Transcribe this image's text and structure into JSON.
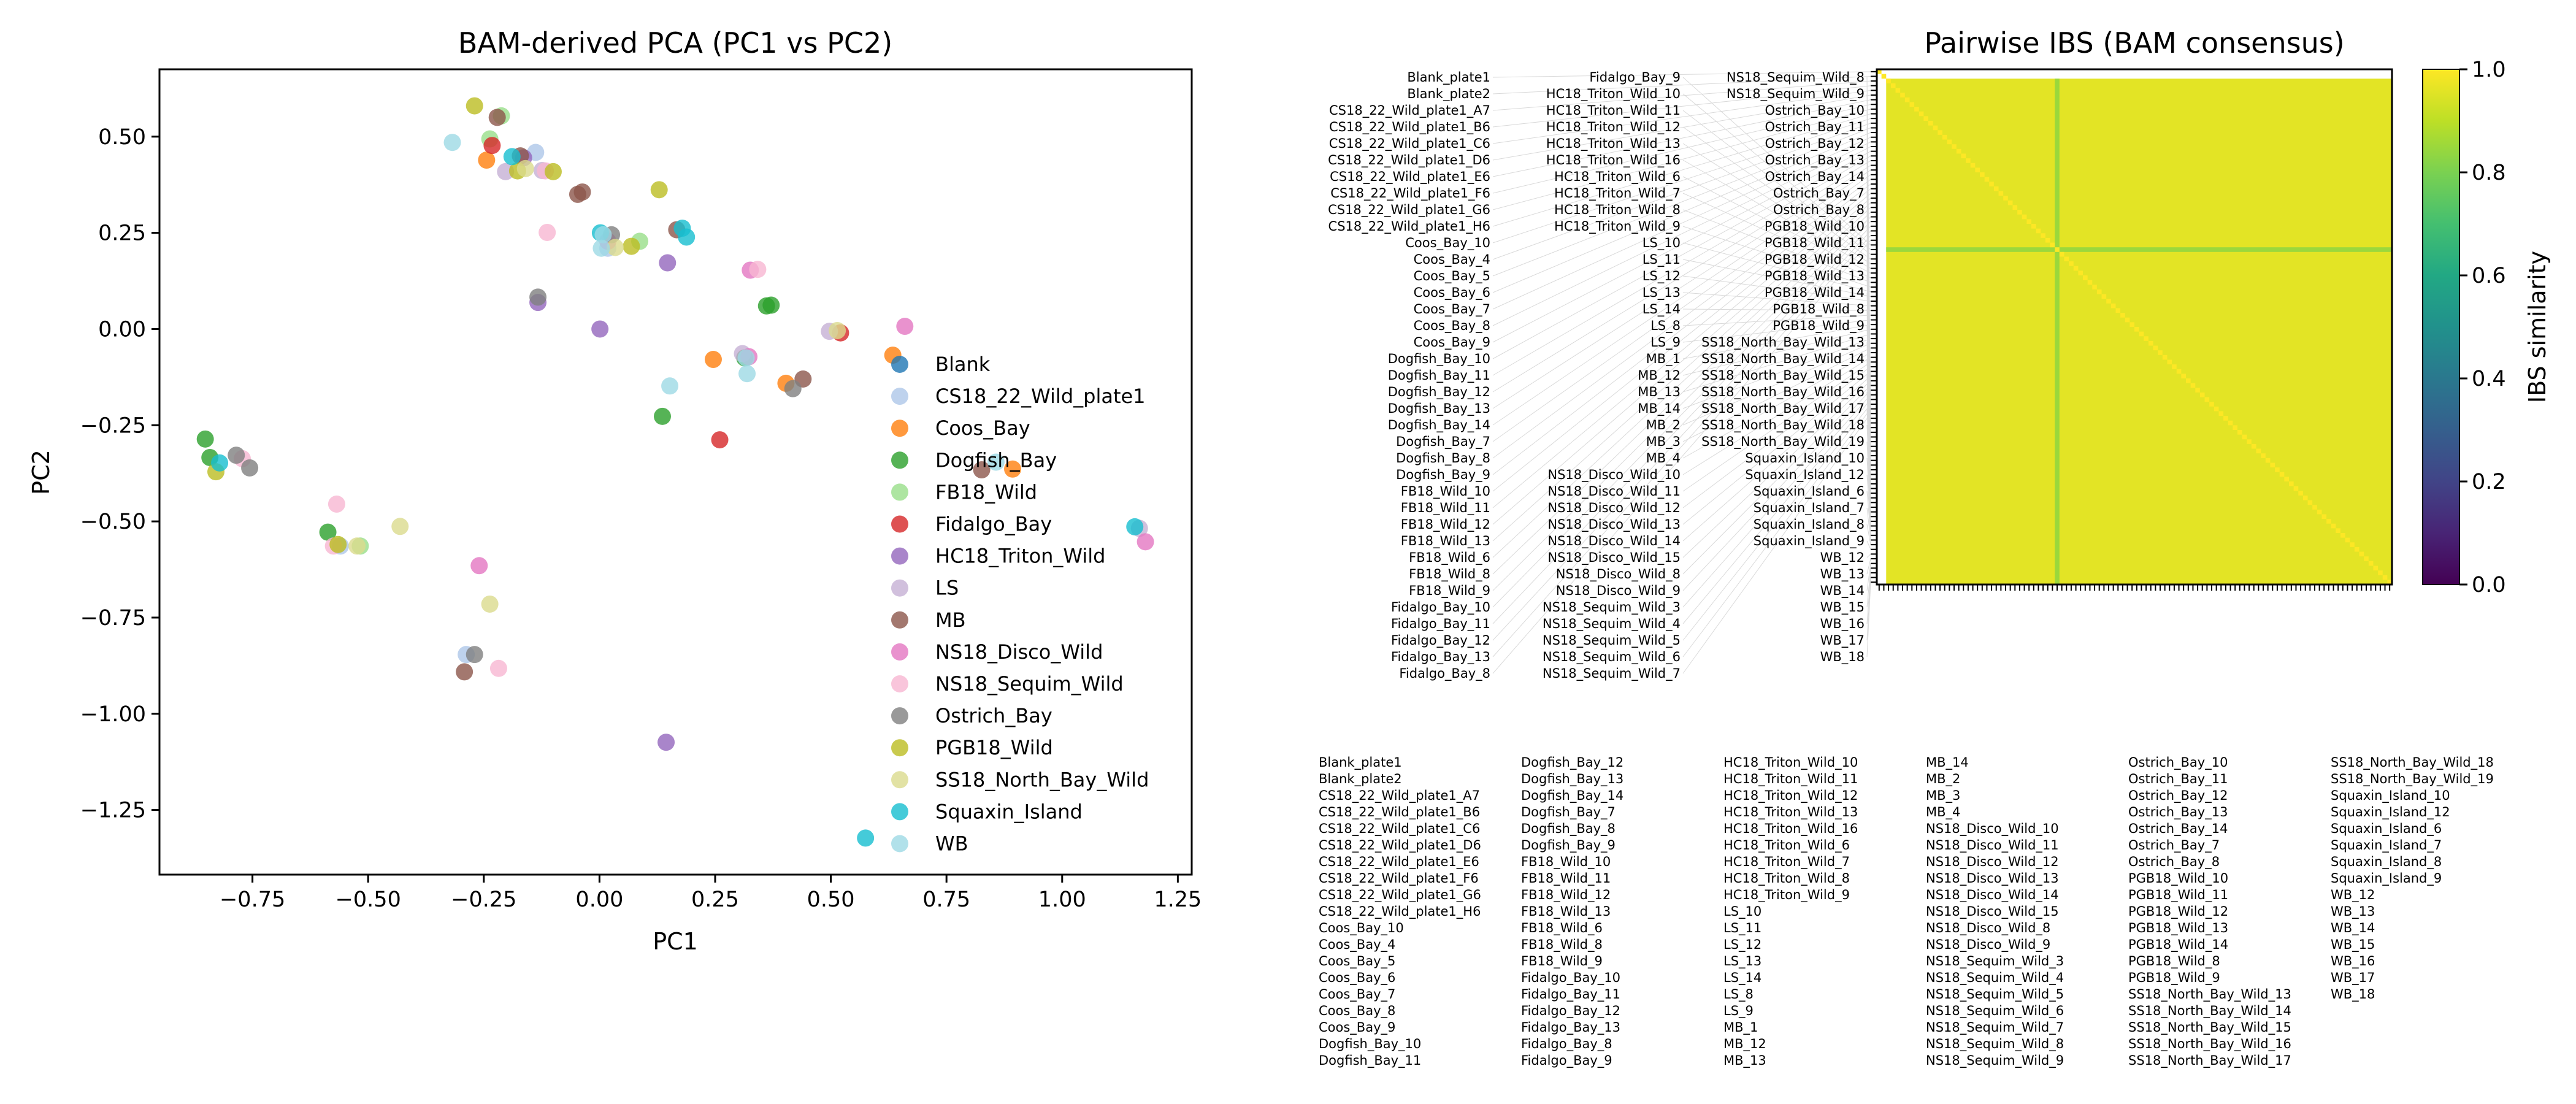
{
  "chart_data": [
    {
      "type": "scatter",
      "title": "BAM-derived PCA (PC1 vs PC2)",
      "xlabel": "PC1",
      "ylabel": "PC2",
      "xlim": [
        -0.951,
        1.28
      ],
      "ylim": [
        -1.418,
        0.675
      ],
      "xticks": [
        -0.75,
        -0.5,
        -0.25,
        0.0,
        0.25,
        0.5,
        0.75,
        1.0,
        1.25
      ],
      "xtick_labels": [
        "−0.75",
        "−0.50",
        "−0.25",
        "0.00",
        "0.25",
        "0.50",
        "0.75",
        "1.00",
        "1.25"
      ],
      "yticks": [
        0.5,
        0.25,
        0.0,
        -0.25,
        -0.5,
        -0.75,
        -1.0,
        -1.25
      ],
      "ytick_labels": [
        "0.50",
        "0.25",
        "0.00",
        "−0.25",
        "−0.50",
        "−0.75",
        "−1.00",
        "−1.25"
      ],
      "grid": false,
      "legend_position": "lower-right",
      "series": [
        {
          "name": "Blank",
          "color": "#1f77b4",
          "points": []
        },
        {
          "name": "CS18_22_Wild_plate1",
          "color": "#aec7e8",
          "points": [
            [
              -0.138,
              0.459
            ],
            [
              0.018,
              0.21
            ],
            [
              -0.56,
              -0.564
            ],
            [
              -0.288,
              -0.846
            ]
          ]
        },
        {
          "name": "Coos_Bay",
          "color": "#ff7f0e",
          "points": [
            [
              -0.244,
              0.439
            ],
            [
              0.634,
              -0.068
            ],
            [
              0.246,
              -0.079
            ],
            [
              0.403,
              -0.141
            ],
            [
              0.893,
              -0.364
            ]
          ]
        },
        {
          "name": "Dogfish_Bay",
          "color": "#2ca02c",
          "points": [
            [
              0.361,
              0.06
            ],
            [
              0.371,
              0.062
            ],
            [
              0.314,
              -0.075
            ],
            [
              0.136,
              -0.227
            ],
            [
              -0.852,
              -0.286
            ],
            [
              -0.842,
              -0.334
            ],
            [
              -0.587,
              -0.528
            ]
          ]
        },
        {
          "name": "FB18_Wild",
          "color": "#98df8a",
          "points": [
            [
              -0.212,
              0.554
            ],
            [
              -0.237,
              0.494
            ],
            [
              0.087,
              0.228
            ],
            [
              -0.517,
              -0.564
            ]
          ]
        },
        {
          "name": "Fidalgo_Bay",
          "color": "#d62728",
          "points": [
            [
              -0.232,
              0.477
            ],
            [
              0.521,
              -0.01
            ],
            [
              0.26,
              -0.288
            ]
          ]
        },
        {
          "name": "HC18_Triton_Wild",
          "color": "#9467bd",
          "points": [
            [
              -0.164,
              0.445
            ],
            [
              0.147,
              0.172
            ],
            [
              -0.133,
              0.069
            ],
            [
              0.001,
              0.0
            ],
            [
              0.144,
              -1.074
            ]
          ]
        },
        {
          "name": "LS",
          "color": "#c5b0d5",
          "points": [
            [
              -0.203,
              0.409
            ],
            [
              -0.124,
              0.412
            ],
            [
              0.497,
              -0.006
            ],
            [
              0.309,
              -0.064
            ],
            [
              1.167,
              -0.518
            ]
          ]
        },
        {
          "name": "MB",
          "color": "#8c564b",
          "points": [
            [
              -0.221,
              0.55
            ],
            [
              -0.171,
              0.45
            ],
            [
              -0.047,
              0.35
            ],
            [
              -0.037,
              0.356
            ],
            [
              0.167,
              0.258
            ],
            [
              0.44,
              -0.13
            ],
            [
              0.826,
              -0.366
            ],
            [
              -0.292,
              -0.891
            ]
          ]
        },
        {
          "name": "NS18_Disco_Wild",
          "color": "#e377c2",
          "points": [
            [
              0.018,
              0.228
            ],
            [
              0.326,
              0.153
            ],
            [
              0.66,
              0.007
            ],
            [
              0.323,
              -0.072
            ],
            [
              1.18,
              -0.553
            ],
            [
              -0.26,
              -0.615
            ]
          ]
        },
        {
          "name": "NS18_Sequim_Wild",
          "color": "#f7b6d2",
          "points": [
            [
              -0.117,
              0.411
            ],
            [
              -0.113,
              0.251
            ],
            [
              0.342,
              0.155
            ],
            [
              -0.772,
              -0.337
            ],
            [
              -0.568,
              -0.455
            ],
            [
              -0.575,
              -0.564
            ],
            [
              -0.218,
              -0.882
            ]
          ]
        },
        {
          "name": "Ostrich_Bay",
          "color": "#7f7f7f",
          "points": [
            [
              0.026,
              0.245
            ],
            [
              -0.133,
              0.083
            ],
            [
              0.418,
              -0.155
            ],
            [
              -0.785,
              -0.328
            ],
            [
              -0.756,
              -0.361
            ],
            [
              -0.27,
              -0.846
            ]
          ]
        },
        {
          "name": "PGB18_Wild",
          "color": "#bcbd22",
          "points": [
            [
              -0.27,
              0.58
            ],
            [
              -0.177,
              0.411
            ],
            [
              -0.1,
              0.409
            ],
            [
              0.129,
              0.362
            ],
            [
              0.069,
              0.215
            ],
            [
              -0.829,
              -0.371
            ],
            [
              -0.565,
              -0.56
            ]
          ]
        },
        {
          "name": "SS18_North_Bay_Wild",
          "color": "#dbdb8d",
          "points": [
            [
              -0.16,
              0.417
            ],
            [
              0.034,
              0.212
            ],
            [
              0.514,
              -0.004
            ],
            [
              -0.431,
              -0.513
            ],
            [
              -0.524,
              -0.564
            ],
            [
              -0.237,
              -0.715
            ]
          ]
        },
        {
          "name": "Squaxin_Island",
          "color": "#17becf",
          "points": [
            [
              -0.189,
              0.448
            ],
            [
              0.002,
              0.25
            ],
            [
              0.179,
              0.262
            ],
            [
              0.188,
              0.239
            ],
            [
              -0.821,
              -0.348
            ],
            [
              1.157,
              -0.514
            ],
            [
              0.575,
              -1.323
            ]
          ]
        },
        {
          "name": "WB",
          "color": "#9edae5",
          "points": [
            [
              -0.318,
              0.485
            ],
            [
              0.008,
              0.245
            ],
            [
              0.004,
              0.21
            ],
            [
              0.317,
              -0.075
            ],
            [
              0.319,
              -0.116
            ],
            [
              0.152,
              -0.148
            ],
            [
              0.857,
              -0.346
            ]
          ]
        }
      ]
    },
    {
      "type": "heatmap",
      "title": "Pairwise IBS (BAM consensus)",
      "colormap": "viridis",
      "colorbar": {
        "label": "IBS similarity",
        "range": [
          0,
          1
        ],
        "ticks": [
          0.0,
          0.2,
          0.4,
          0.6,
          0.8,
          1.0
        ],
        "tick_labels": [
          "0.0",
          "0.2",
          "0.4",
          "0.6",
          "0.8",
          "1.0"
        ]
      },
      "values": {
        "diagonal": 1.0,
        "typical_off_diagonal": 0.96,
        "outlier_sample": "HC18_Triton_Wild_10",
        "outlier_value": 0.85,
        "blank_off_diagonal": null
      },
      "labels": [
        "Blank_plate1",
        "Blank_plate2",
        "CS18_22_Wild_plate1_A7",
        "CS18_22_Wild_plate1_B6",
        "CS18_22_Wild_plate1_C6",
        "CS18_22_Wild_plate1_D6",
        "CS18_22_Wild_plate1_E6",
        "CS18_22_Wild_plate1_F6",
        "CS18_22_Wild_plate1_G6",
        "CS18_22_Wild_plate1_H6",
        "Coos_Bay_10",
        "Coos_Bay_4",
        "Coos_Bay_5",
        "Coos_Bay_6",
        "Coos_Bay_7",
        "Coos_Bay_8",
        "Coos_Bay_9",
        "Dogfish_Bay_10",
        "Dogfish_Bay_11",
        "Dogfish_Bay_12",
        "Dogfish_Bay_13",
        "Dogfish_Bay_14",
        "Dogfish_Bay_7",
        "Dogfish_Bay_8",
        "Dogfish_Bay_9",
        "FB18_Wild_10",
        "FB18_Wild_11",
        "FB18_Wild_12",
        "FB18_Wild_13",
        "FB18_Wild_6",
        "FB18_Wild_8",
        "FB18_Wild_9",
        "Fidalgo_Bay_10",
        "Fidalgo_Bay_11",
        "Fidalgo_Bay_12",
        "Fidalgo_Bay_13",
        "Fidalgo_Bay_8",
        "Fidalgo_Bay_9",
        "HC18_Triton_Wild_10",
        "HC18_Triton_Wild_11",
        "HC18_Triton_Wild_12",
        "HC18_Triton_Wild_13",
        "HC18_Triton_Wild_16",
        "HC18_Triton_Wild_6",
        "HC18_Triton_Wild_7",
        "HC18_Triton_Wild_8",
        "HC18_Triton_Wild_9",
        "LS_10",
        "LS_11",
        "LS_12",
        "LS_13",
        "LS_14",
        "LS_8",
        "LS_9",
        "MB_1",
        "MB_12",
        "MB_13",
        "MB_14",
        "MB_2",
        "MB_3",
        "MB_4",
        "NS18_Disco_Wild_10",
        "NS18_Disco_Wild_11",
        "NS18_Disco_Wild_12",
        "NS18_Disco_Wild_13",
        "NS18_Disco_Wild_14",
        "NS18_Disco_Wild_15",
        "NS18_Disco_Wild_8",
        "NS18_Disco_Wild_9",
        "NS18_Sequim_Wild_3",
        "NS18_Sequim_Wild_4",
        "NS18_Sequim_Wild_5",
        "NS18_Sequim_Wild_6",
        "NS18_Sequim_Wild_7",
        "NS18_Sequim_Wild_8",
        "NS18_Sequim_Wild_9",
        "Ostrich_Bay_10",
        "Ostrich_Bay_11",
        "Ostrich_Bay_12",
        "Ostrich_Bay_13",
        "Ostrich_Bay_14",
        "Ostrich_Bay_7",
        "Ostrich_Bay_8",
        "PGB18_Wild_10",
        "PGB18_Wild_11",
        "PGB18_Wild_12",
        "PGB18_Wild_13",
        "PGB18_Wild_14",
        "PGB18_Wild_8",
        "PGB18_Wild_9",
        "SS18_North_Bay_Wild_13",
        "SS18_North_Bay_Wild_14",
        "SS18_North_Bay_Wild_15",
        "SS18_North_Bay_Wild_16",
        "SS18_North_Bay_Wild_17",
        "SS18_North_Bay_Wild_18",
        "SS18_North_Bay_Wild_19",
        "Squaxin_Island_10",
        "Squaxin_Island_12",
        "Squaxin_Island_6",
        "Squaxin_Island_7",
        "Squaxin_Island_8",
        "Squaxin_Island_9",
        "WB_12",
        "WB_13",
        "WB_14",
        "WB_15",
        "WB_16",
        "WB_17",
        "WB_18"
      ]
    }
  ]
}
